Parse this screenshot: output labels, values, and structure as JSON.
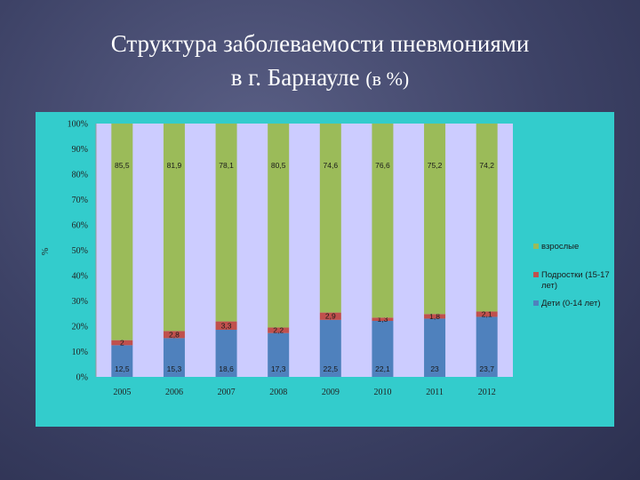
{
  "slide": {
    "title_line1": "Структура заболеваемости пневмониями",
    "title_line2": "в г. Барнауле",
    "title_suffix": "(в %)"
  },
  "chart_data": {
    "type": "bar",
    "stacked": true,
    "ylabel": "%",
    "ylim": [
      0,
      100
    ],
    "yticks": [
      "0%",
      "10%",
      "20%",
      "30%",
      "40%",
      "50%",
      "60%",
      "70%",
      "80%",
      "90%",
      "100%"
    ],
    "categories": [
      "2005",
      "2006",
      "2007",
      "2008",
      "2009",
      "2010",
      "2011",
      "2012"
    ],
    "series": [
      {
        "name": "Дети (0-14 лет)",
        "color": "#4f81bd",
        "values": [
          12.5,
          15.3,
          18.6,
          17.3,
          22.5,
          22.1,
          23,
          23.7
        ],
        "labels": [
          "12,5",
          "15,3",
          "18,6",
          "17,3",
          "22,5",
          "22,1",
          "23",
          "23,7"
        ]
      },
      {
        "name": "Подростки (15-17 лет)",
        "color": "#c0504d",
        "values": [
          2,
          2.8,
          3.3,
          2.2,
          2.9,
          1.3,
          1.8,
          2.1
        ],
        "labels": [
          "2",
          "2,8",
          "3,3",
          "2,2",
          "2,9",
          "1,3",
          "1,8",
          "2,1"
        ]
      },
      {
        "name": "взрослые",
        "color": "#9bbb59",
        "values": [
          85.5,
          81.9,
          78.1,
          80.5,
          74.6,
          76.6,
          75.2,
          74.2
        ],
        "labels": [
          "85,5",
          "81,9",
          "78,1",
          "80,5",
          "74,6",
          "76,6",
          "75,2",
          "74,2"
        ]
      }
    ],
    "legend_position": "right",
    "legend_order": [
      "взрослые",
      "Подростки (15-17 лет)",
      "Дети (0-14 лет)"
    ],
    "grid": false,
    "plot_background": "#ccccff",
    "panel_background": "#33cccc"
  }
}
